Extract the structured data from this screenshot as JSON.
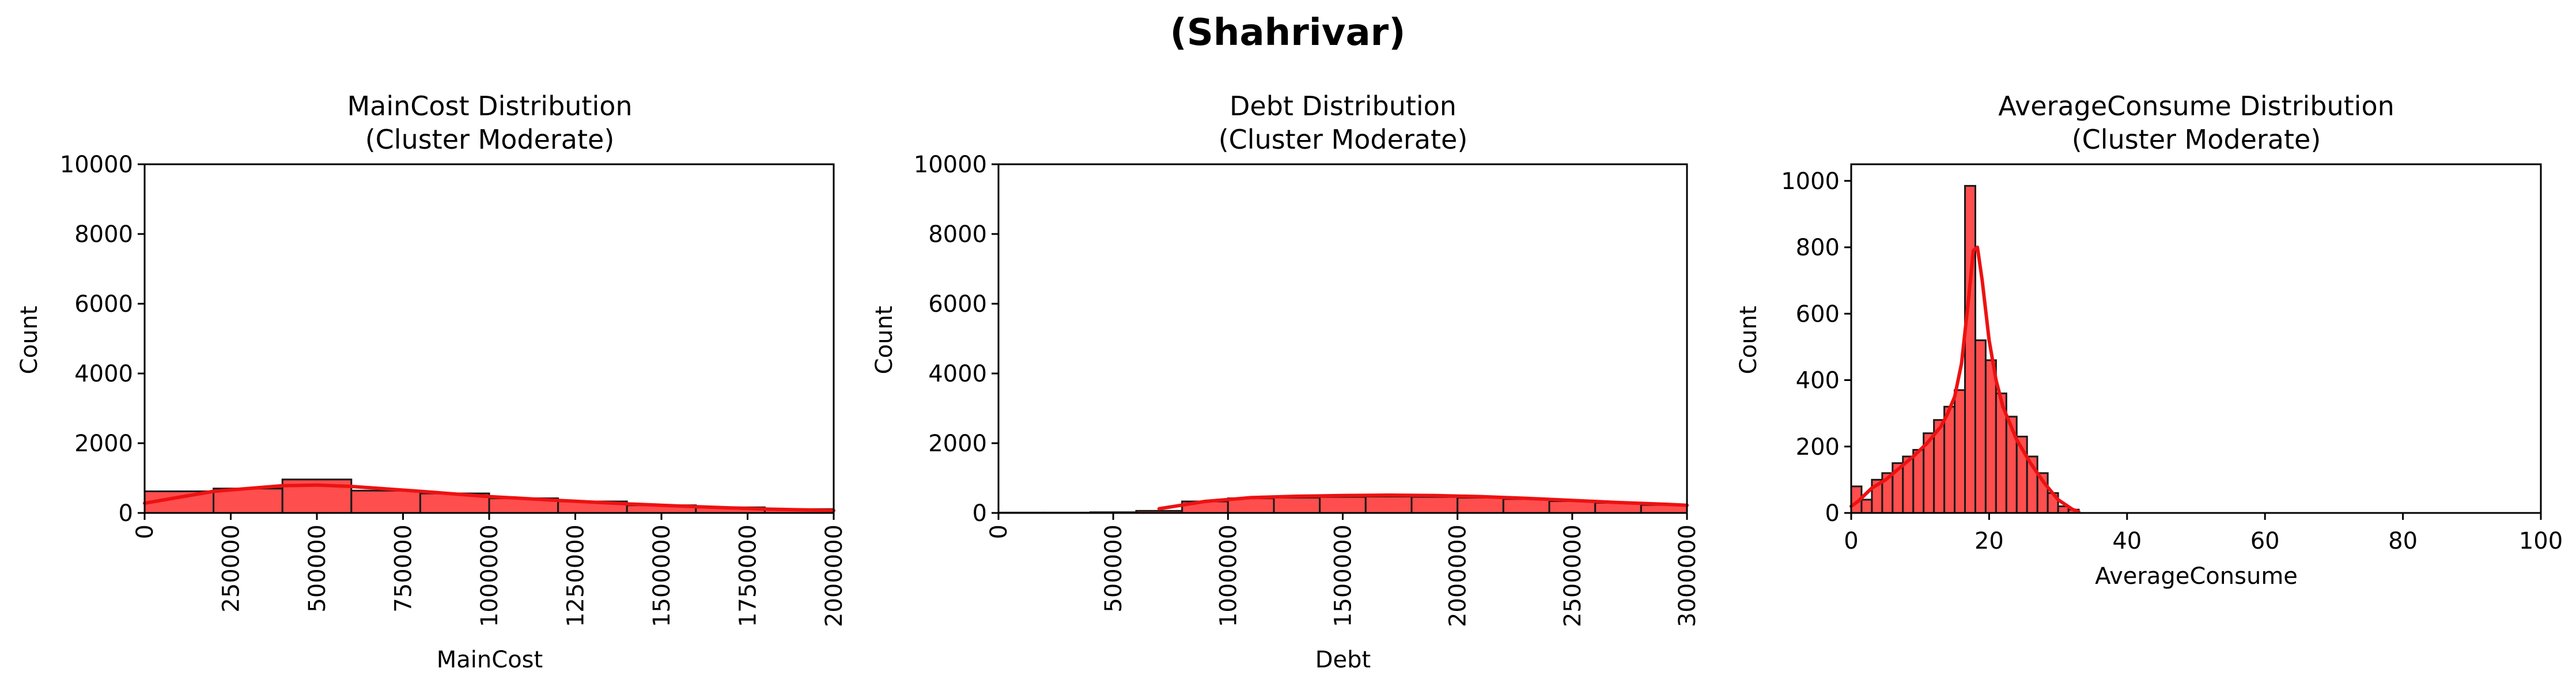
{
  "figure": {
    "suptitle": "(Shahrivar)",
    "colors": {
      "bar": "#ff3b3b",
      "kde": "#ee1111",
      "edge": "#1a1a1a"
    }
  },
  "chart_data": [
    {
      "type": "histogram",
      "title_line1": "MainCost Distribution",
      "title_line2": "(Cluster Moderate)",
      "xlabel": "MainCost",
      "ylabel": "Count",
      "xlim": [
        0,
        2000000
      ],
      "ylim": [
        0,
        10000
      ],
      "xticks": [
        "0",
        "250000",
        "500000",
        "750000",
        "1000000",
        "1250000",
        "1500000",
        "1750000",
        "2000000"
      ],
      "yticks": [
        "0",
        "2000",
        "4000",
        "6000",
        "8000",
        "10000"
      ],
      "xtick_rotation": 90,
      "bin_edges": [
        0,
        200000,
        400000,
        600000,
        800000,
        1000000,
        1200000,
        1400000,
        1600000,
        1800000,
        2000000
      ],
      "counts": [
        620,
        700,
        960,
        640,
        560,
        420,
        330,
        220,
        160,
        110
      ],
      "kde": {
        "x": [
          0,
          200000,
          400000,
          500000,
          600000,
          800000,
          1000000,
          1200000,
          1400000,
          1600000,
          1800000,
          2000000
        ],
        "y": [
          280,
          620,
          780,
          800,
          760,
          620,
          470,
          360,
          260,
          180,
          110,
          70
        ]
      }
    },
    {
      "type": "histogram",
      "title_line1": "Debt Distribution",
      "title_line2": "(Cluster Moderate)",
      "xlabel": "Debt",
      "ylabel": "Count",
      "xlim": [
        0,
        3000000
      ],
      "ylim": [
        0,
        10000
      ],
      "xticks": [
        "0",
        "500000",
        "1000000",
        "1500000",
        "2000000",
        "2500000",
        "3000000"
      ],
      "yticks": [
        "0",
        "2000",
        "4000",
        "6000",
        "8000",
        "10000"
      ],
      "xtick_rotation": 90,
      "bin_edges": [
        0,
        200000,
        400000,
        600000,
        800000,
        1000000,
        1200000,
        1400000,
        1600000,
        1800000,
        2000000,
        2200000,
        2400000,
        2600000,
        2800000,
        3000000
      ],
      "counts": [
        10,
        10,
        20,
        60,
        330,
        420,
        440,
        460,
        470,
        460,
        440,
        400,
        340,
        290,
        230
      ],
      "kde": {
        "x": [
          700000,
          900000,
          1100000,
          1300000,
          1500000,
          1700000,
          1900000,
          2100000,
          2300000,
          2500000,
          2700000,
          2900000,
          3000000
        ],
        "y": [
          120,
          330,
          440,
          480,
          500,
          510,
          500,
          470,
          420,
          360,
          300,
          250,
          220
        ]
      }
    },
    {
      "type": "histogram",
      "title_line1": "AverageConsume Distribution",
      "title_line2": "(Cluster Moderate)",
      "xlabel": "AverageConsume",
      "ylabel": "Count",
      "xlim": [
        0,
        100
      ],
      "ylim": [
        0,
        1050
      ],
      "xticks": [
        "0",
        "20",
        "40",
        "60",
        "80",
        "100"
      ],
      "yticks": [
        "0",
        "200",
        "400",
        "600",
        "800",
        "1000"
      ],
      "xtick_rotation": 0,
      "bin_edges": [
        0,
        1.5,
        3,
        4.5,
        6,
        7.5,
        9,
        10.5,
        12,
        13.5,
        15,
        16.5,
        18,
        19.5,
        21,
        22.5,
        24,
        25.5,
        27,
        28.5,
        30,
        31.5,
        33
      ],
      "counts": [
        80,
        40,
        100,
        120,
        150,
        170,
        190,
        240,
        280,
        320,
        370,
        985,
        520,
        460,
        360,
        290,
        230,
        170,
        120,
        60,
        20,
        10
      ],
      "kde": {
        "x": [
          0,
          1,
          2,
          3,
          5,
          7,
          9,
          11,
          13,
          14,
          15,
          16,
          17,
          17.7,
          18.3,
          19,
          20,
          21,
          22,
          24,
          26,
          28,
          30,
          32,
          33
        ],
        "y": [
          20,
          35,
          55,
          75,
          100,
          135,
          170,
          210,
          260,
          300,
          350,
          450,
          640,
          790,
          800,
          700,
          520,
          400,
          320,
          220,
          150,
          90,
          40,
          12,
          3
        ]
      }
    }
  ]
}
